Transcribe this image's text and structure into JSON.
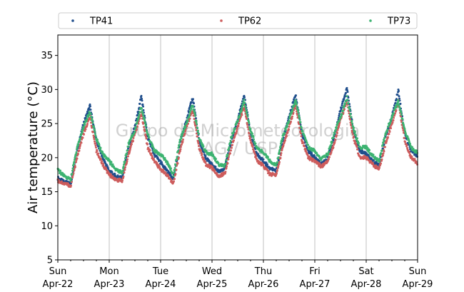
{
  "chart_data": {
    "type": "scatter",
    "ylabel": "Air temperature (°C)",
    "xlabel": "",
    "ylim": [
      5,
      38
    ],
    "yticks": [
      5,
      10,
      15,
      20,
      25,
      30,
      35
    ],
    "xlim": [
      "2018-04-22 00:00",
      "2018-04-29 00:00"
    ],
    "xticks": [
      {
        "day": "Sun",
        "date": "Apr-22"
      },
      {
        "day": "Mon",
        "date": "Apr-23"
      },
      {
        "day": "Tue",
        "date": "Apr-24"
      },
      {
        "day": "Wed",
        "date": "Apr-25"
      },
      {
        "day": "Thu",
        "date": "Apr-26"
      },
      {
        "day": "Fri",
        "date": "Apr-27"
      },
      {
        "day": "Sat",
        "date": "Apr-28"
      },
      {
        "day": "Sun",
        "date": "Apr-29"
      }
    ],
    "grid": "vertical lines at day boundaries",
    "legend": {
      "placement": "top, outside plot",
      "columns": 3
    },
    "watermark": [
      "Grupo de Micrometeorologia",
      "IAG / USP"
    ],
    "x_hours": [
      0,
      3,
      6,
      9,
      12,
      15,
      18,
      21
    ],
    "series": [
      {
        "name": "TP41",
        "color": "#1f4e8c",
        "daily": [
          {
            "date": "Apr-22",
            "values": [
              17.0,
              16.4,
              16.2,
              21.0,
              25.0,
              27.6,
              22.5,
              20.0
            ]
          },
          {
            "date": "Apr-23",
            "values": [
              18.0,
              17.3,
              17.0,
              21.5,
              24.5,
              29.0,
              23.0,
              20.5
            ]
          },
          {
            "date": "Apr-24",
            "values": [
              19.3,
              18.0,
              17.0,
              22.0,
              25.5,
              28.8,
              22.5,
              20.0
            ]
          },
          {
            "date": "Apr-25",
            "values": [
              19.0,
              18.0,
              18.5,
              22.5,
              25.5,
              29.3,
              23.5,
              20.5
            ]
          },
          {
            "date": "Apr-26",
            "values": [
              19.5,
              18.5,
              18.0,
              22.5,
              26.0,
              29.3,
              23.5,
              21.0
            ]
          },
          {
            "date": "Apr-27",
            "values": [
              20.0,
              19.0,
              20.0,
              23.0,
              27.0,
              30.1,
              24.0,
              21.0
            ]
          },
          {
            "date": "Apr-28",
            "values": [
              20.5,
              19.5,
              19.0,
              23.0,
              26.0,
              29.9,
              23.5,
              21.0
            ]
          }
        ]
      },
      {
        "name": "TP62",
        "color": "#cd5c5c",
        "daily": [
          {
            "date": "Apr-22",
            "values": [
              16.6,
              16.2,
              15.9,
              20.0,
              23.5,
              26.0,
              21.0,
              19.0
            ]
          },
          {
            "date": "Apr-23",
            "values": [
              17.5,
              16.8,
              16.6,
              20.5,
              23.5,
              26.5,
              21.5,
              19.5
            ]
          },
          {
            "date": "Apr-24",
            "values": [
              18.3,
              17.5,
              16.2,
              21.0,
              24.5,
              27.0,
              21.5,
              19.0
            ]
          },
          {
            "date": "Apr-25",
            "values": [
              18.5,
              17.3,
              17.7,
              21.5,
              24.5,
              27.5,
              22.5,
              19.5
            ]
          },
          {
            "date": "Apr-26",
            "values": [
              18.8,
              17.6,
              17.5,
              21.5,
              24.5,
              27.8,
              22.5,
              20.0
            ]
          },
          {
            "date": "Apr-27",
            "values": [
              19.5,
              18.7,
              19.5,
              22.0,
              25.5,
              28.3,
              23.0,
              20.0
            ]
          },
          {
            "date": "Apr-28",
            "values": [
              20.0,
              19.0,
              18.3,
              22.0,
              25.0,
              28.2,
              22.5,
              20.0
            ]
          }
        ]
      },
      {
        "name": "TP73",
        "color": "#3cb371",
        "daily": [
          {
            "date": "Apr-22",
            "values": [
              18.2,
              17.3,
              16.8,
              21.5,
              24.5,
              26.8,
              22.8,
              20.5
            ]
          },
          {
            "date": "Apr-23",
            "values": [
              19.5,
              18.3,
              17.8,
              22.0,
              24.0,
              27.5,
              23.3,
              21.0
            ]
          },
          {
            "date": "Apr-24",
            "values": [
              20.5,
              19.3,
              17.5,
              22.5,
              25.0,
              27.8,
              23.0,
              20.8
            ]
          },
          {
            "date": "Apr-25",
            "values": [
              20.5,
              19.0,
              18.8,
              23.0,
              25.5,
              28.3,
              24.0,
              21.3
            ]
          },
          {
            "date": "Apr-26",
            "values": [
              20.8,
              19.5,
              18.8,
              23.0,
              25.5,
              28.5,
              24.0,
              21.5
            ]
          },
          {
            "date": "Apr-27",
            "values": [
              21.0,
              19.8,
              20.5,
              23.5,
              26.0,
              28.8,
              24.3,
              21.5
            ]
          },
          {
            "date": "Apr-28",
            "values": [
              21.5,
              20.3,
              19.5,
              23.5,
              26.0,
              28.3,
              24.0,
              21.5
            ]
          }
        ]
      }
    ]
  }
}
